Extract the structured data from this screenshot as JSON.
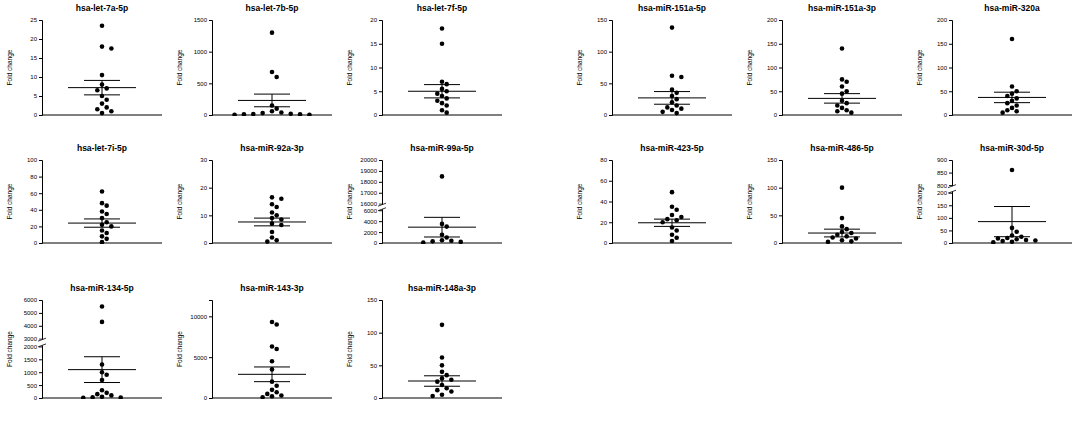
{
  "chart_data": [
    {
      "type": "scatter",
      "title": "hsa-let-7a-5p",
      "y_label": "Fold change",
      "marker": "circle",
      "color": "#000000",
      "values": [
        23.5,
        18,
        17.5,
        10.5,
        8,
        7,
        6.5,
        5,
        4,
        3,
        2,
        1.5,
        1,
        0.5
      ],
      "mean": 7.2,
      "sem": 1.9,
      "ylim": [
        0,
        25
      ],
      "yticks": [
        0,
        5,
        10,
        15,
        20,
        25
      ]
    },
    {
      "type": "scatter",
      "title": "hsa-let-7b-5p",
      "y_label": "Fold change",
      "marker": "circle",
      "color": "#000000",
      "values": [
        1300,
        680,
        600,
        150,
        100,
        60,
        40,
        30,
        20,
        15,
        10,
        10,
        5,
        5
      ],
      "mean": 230,
      "sem": 100,
      "ylim": [
        0,
        1500
      ],
      "yticks": [
        0,
        500,
        1000,
        1500
      ]
    },
    {
      "type": "scatter",
      "title": "hsa-let-7f-5p",
      "y_label": "Fold change",
      "marker": "circle",
      "color": "#000000",
      "values": [
        18.2,
        15,
        7,
        6.5,
        5.5,
        5,
        4.5,
        4,
        3.5,
        3,
        2.5,
        2,
        1,
        0.5
      ],
      "mean": 5,
      "sem": 1.4,
      "ylim": [
        0,
        20
      ],
      "yticks": [
        0,
        5,
        10,
        15,
        20
      ]
    },
    {
      "type": "scatter",
      "title": "hsa-miR-151a-5p",
      "y_label": "Fold change",
      "marker": "circle",
      "color": "#000000",
      "values": [
        138,
        62,
        60,
        40,
        35,
        30,
        25,
        20,
        15,
        12,
        10,
        8,
        5,
        3
      ],
      "mean": 27,
      "sem": 10,
      "ylim": [
        0,
        150
      ],
      "yticks": [
        0,
        50,
        100,
        150
      ]
    },
    {
      "type": "scatter",
      "title": "hsa-miR-151a-3p",
      "y_label": "Fold change",
      "marker": "circle",
      "color": "#000000",
      "values": [
        140,
        75,
        70,
        60,
        50,
        45,
        30,
        25,
        20,
        15,
        10,
        8,
        5
      ],
      "mean": 35,
      "sem": 10,
      "ylim": [
        0,
        200
      ],
      "yticks": [
        0,
        50,
        100,
        150,
        200
      ]
    },
    {
      "type": "scatter",
      "title": "hsa-miR-320a",
      "y_label": "Fold change",
      "marker": "circle",
      "color": "#000000",
      "values": [
        160,
        60,
        50,
        45,
        40,
        35,
        30,
        25,
        20,
        15,
        10,
        8,
        5
      ],
      "mean": 37,
      "sem": 11,
      "ylim": [
        0,
        200
      ],
      "yticks": [
        0,
        50,
        100,
        150,
        200
      ]
    },
    {
      "type": "scatter",
      "title": "hsa-let-7i-5p",
      "y_label": "Fold change",
      "marker": "circle",
      "color": "#000000",
      "values": [
        62,
        48,
        45,
        38,
        35,
        30,
        25,
        22,
        20,
        15,
        12,
        8,
        5,
        1
      ],
      "mean": 24,
      "sem": 5,
      "ylim": [
        0,
        100
      ],
      "yticks": [
        0,
        20,
        40,
        60,
        80,
        100
      ]
    },
    {
      "type": "scatter",
      "title": "hsa-miR-92a-3p",
      "y_label": "Fold change",
      "marker": "circle",
      "color": "#000000",
      "values": [
        16.5,
        16,
        14,
        13,
        11,
        10,
        9,
        8.5,
        7,
        6.5,
        4,
        2,
        1,
        0.5
      ],
      "mean": 7.6,
      "sem": 1.4,
      "ylim": [
        0,
        30
      ],
      "yticks": [
        0,
        10,
        20,
        30
      ]
    },
    {
      "type": "scatter",
      "title": "hsa-miR-99a-5p",
      "y_label": "Fold change",
      "marker": "circle",
      "color": "#000000",
      "values": [
        18500,
        3500,
        3000,
        1500,
        1000,
        500,
        400,
        300,
        200,
        100
      ],
      "mean": 2900,
      "sem": 1800,
      "ylim": [
        0,
        20000
      ],
      "yticks": [
        0,
        2000,
        4000,
        6000,
        16000,
        17000,
        18000,
        19000,
        20000
      ]
    },
    {
      "type": "scatter",
      "title": "hsa-miR-423-5p",
      "y_label": "Fold change",
      "marker": "circle",
      "color": "#000000",
      "values": [
        49,
        35,
        32,
        27,
        25,
        23,
        22,
        20,
        15,
        12,
        8,
        5,
        2
      ],
      "mean": 19.5,
      "sem": 3.5,
      "ylim": [
        0,
        80
      ],
      "yticks": [
        0,
        20,
        40,
        60,
        80
      ]
    },
    {
      "type": "scatter",
      "title": "hsa-miR-486-5p",
      "y_label": "Fold change",
      "marker": "circle",
      "color": "#000000",
      "values": [
        100,
        45,
        30,
        25,
        20,
        18,
        15,
        12,
        10,
        8,
        5,
        3,
        2
      ],
      "mean": 18,
      "sem": 7,
      "ylim": [
        0,
        150
      ],
      "yticks": [
        0,
        50,
        100,
        150
      ]
    },
    {
      "type": "scatter",
      "title": "hsa-miR-30d-5p",
      "y_label": "Fold change",
      "marker": "circle",
      "color": "#000000",
      "values": [
        860,
        60,
        45,
        30,
        25,
        20,
        18,
        15,
        12,
        10,
        8,
        5,
        3
      ],
      "mean": 85,
      "sem": 60,
      "ylim": [
        0,
        900
      ],
      "yticks": [
        0,
        50,
        100,
        150,
        200,
        800,
        850,
        900
      ]
    },
    {
      "type": "scatter",
      "title": "hsa-miR-134-5p",
      "y_label": "Fold change",
      "marker": "circle",
      "color": "#000000",
      "values": [
        5500,
        4300,
        1300,
        1000,
        900,
        700,
        300,
        200,
        150,
        100,
        50,
        30,
        20,
        10
      ],
      "mean": 1100,
      "sem": 500,
      "ylim": [
        0,
        6000
      ],
      "yticks": [
        0,
        500,
        1000,
        1500,
        2000,
        3000,
        4000,
        5000,
        6000
      ]
    },
    {
      "type": "scatter",
      "title": "hsa-miR-143-3p",
      "y_label": "Fold change",
      "marker": "circle",
      "color": "#000000",
      "values": [
        9300,
        9000,
        6300,
        6000,
        4500,
        3500,
        2000,
        1500,
        1000,
        700,
        500,
        300,
        200,
        100
      ],
      "mean": 2900,
      "sem": 900,
      "ylim": [
        0,
        12000
      ],
      "yticks": [
        0,
        5000,
        10000
      ]
    },
    {
      "type": "scatter",
      "title": "hsa-miR-148a-3p",
      "y_label": "Fold change",
      "marker": "circle",
      "color": "#000000",
      "values": [
        112,
        62,
        50,
        40,
        35,
        30,
        28,
        25,
        20,
        15,
        12,
        10,
        5,
        3
      ],
      "mean": 26,
      "sem": 8,
      "ylim": [
        0,
        150
      ],
      "yticks": [
        0,
        50,
        100,
        150
      ]
    }
  ]
}
